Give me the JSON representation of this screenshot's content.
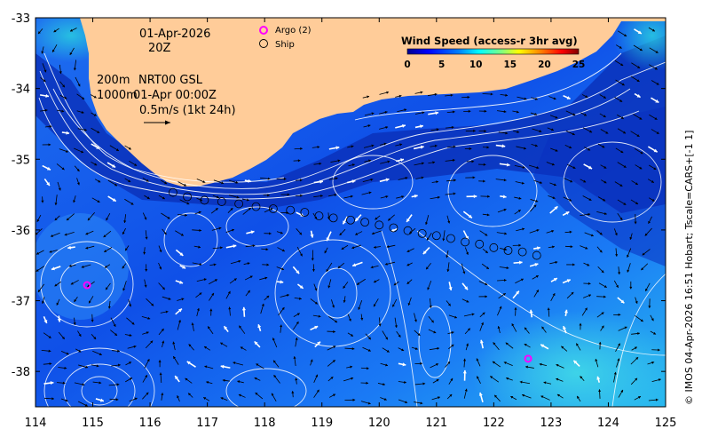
{
  "map": {
    "date": "01-Apr-2026",
    "hour": "20Z",
    "depth_primary": "200m",
    "depth_secondary": "1000m",
    "product": "NRT00 GSL",
    "analysis_time": "01-Apr 00:00Z",
    "scale_label": "0.5m/s (1kt 24h)",
    "credit": "© IMOS 04-Apr-2026 16:51 Hobart; Tscale=CARS+[-1 1]",
    "region": {
      "lon_min": 114,
      "lon_max": 125,
      "lat_min": -38.5,
      "lat_max": -33
    }
  },
  "legend": {
    "argo_label": "Argo (2)",
    "ship_label": "Ship",
    "argo_color": "#ff00ff",
    "ship_color": "#000000"
  },
  "colorbar": {
    "title": "Wind Speed (access-r 3hr avg)",
    "ticks": [
      "0",
      "5",
      "10",
      "15",
      "20",
      "25"
    ],
    "min": 0,
    "max": 25,
    "colors": [
      "#00008f",
      "#0000ff",
      "#0080ff",
      "#00ffff",
      "#80ff80",
      "#ffff00",
      "#ff8000",
      "#ff0000",
      "#800000"
    ]
  },
  "axes": {
    "x_ticks": [
      "114",
      "115",
      "116",
      "117",
      "118",
      "119",
      "120",
      "121",
      "122",
      "123",
      "124",
      "125"
    ],
    "y_ticks": [
      "-33",
      "-34",
      "-35",
      "-36",
      "-37",
      "-38"
    ]
  },
  "argo_floats": [
    {
      "lon": 114.9,
      "lat": -36.78
    },
    {
      "lon": 122.6,
      "lat": -37.82
    }
  ],
  "ship_track": [
    {
      "lon": 116.4,
      "lat": -35.47
    },
    {
      "lon": 116.65,
      "lat": -35.53
    },
    {
      "lon": 116.95,
      "lat": -35.58
    },
    {
      "lon": 117.25,
      "lat": -35.6
    },
    {
      "lon": 117.55,
      "lat": -35.63
    },
    {
      "lon": 117.85,
      "lat": -35.67
    },
    {
      "lon": 118.15,
      "lat": -35.7
    },
    {
      "lon": 118.45,
      "lat": -35.72
    },
    {
      "lon": 118.7,
      "lat": -35.75
    },
    {
      "lon": 118.95,
      "lat": -35.8
    },
    {
      "lon": 119.2,
      "lat": -35.83
    },
    {
      "lon": 119.5,
      "lat": -35.86
    },
    {
      "lon": 119.75,
      "lat": -35.89
    },
    {
      "lon": 120.0,
      "lat": -35.93
    },
    {
      "lon": 120.25,
      "lat": -35.97
    },
    {
      "lon": 120.5,
      "lat": -36.01
    },
    {
      "lon": 120.75,
      "lat": -36.05
    },
    {
      "lon": 121.0,
      "lat": -36.08
    },
    {
      "lon": 121.25,
      "lat": -36.12
    },
    {
      "lon": 121.5,
      "lat": -36.17
    },
    {
      "lon": 121.75,
      "lat": -36.2
    },
    {
      "lon": 122.0,
      "lat": -36.25
    },
    {
      "lon": 122.25,
      "lat": -36.29
    },
    {
      "lon": 122.5,
      "lat": -36.31
    },
    {
      "lon": 122.75,
      "lat": -36.36
    }
  ]
}
